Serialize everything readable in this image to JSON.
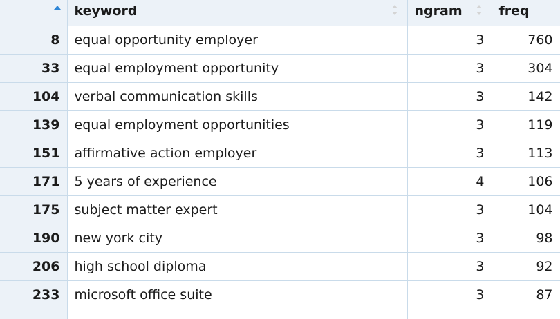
{
  "table": {
    "columns": [
      {
        "key": "index",
        "label": ""
      },
      {
        "key": "keyword",
        "label": "keyword"
      },
      {
        "key": "ngram",
        "label": "ngram"
      },
      {
        "key": "freq",
        "label": "freq"
      }
    ],
    "sort": {
      "column": "index",
      "direction": "ascending",
      "active_color": "#2f86d6"
    },
    "rows": [
      {
        "index": "8",
        "keyword": "equal opportunity employer",
        "ngram": "3",
        "freq": "760"
      },
      {
        "index": "33",
        "keyword": "equal employment opportunity",
        "ngram": "3",
        "freq": "304"
      },
      {
        "index": "104",
        "keyword": "verbal communication skills",
        "ngram": "3",
        "freq": "142"
      },
      {
        "index": "139",
        "keyword": "equal employment opportunities",
        "ngram": "3",
        "freq": "119"
      },
      {
        "index": "151",
        "keyword": "affirmative action employer",
        "ngram": "3",
        "freq": "113"
      },
      {
        "index": "171",
        "keyword": "5 years of experience",
        "ngram": "4",
        "freq": "106"
      },
      {
        "index": "175",
        "keyword": "subject matter expert",
        "ngram": "3",
        "freq": "104"
      },
      {
        "index": "190",
        "keyword": "new york city",
        "ngram": "3",
        "freq": "98"
      },
      {
        "index": "206",
        "keyword": "high school diploma",
        "ngram": "3",
        "freq": "92"
      },
      {
        "index": "233",
        "keyword": "microsoft office suite",
        "ngram": "3",
        "freq": "87"
      }
    ]
  }
}
